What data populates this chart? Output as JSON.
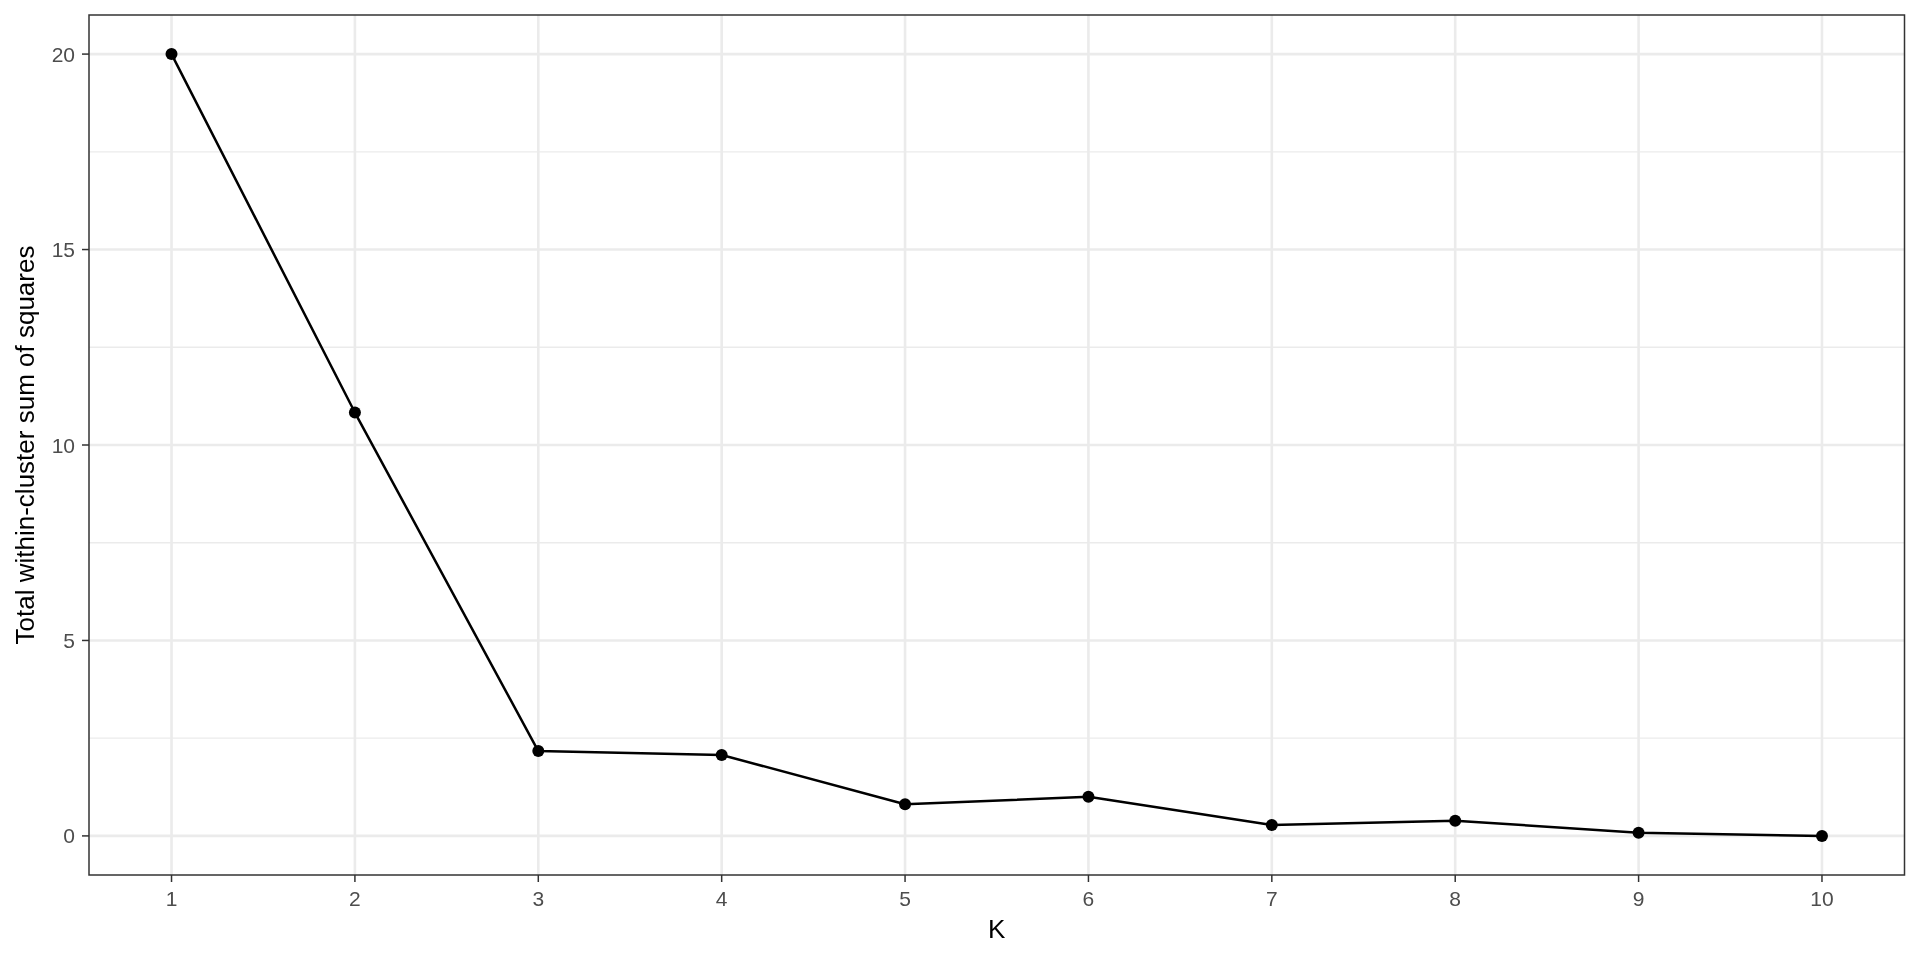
{
  "chart_data": {
    "type": "line",
    "xlabel": "K",
    "ylabel": "Total within-cluster sum of squares",
    "x": [
      1,
      2,
      3,
      4,
      5,
      6,
      7,
      8,
      9,
      10
    ],
    "values": [
      20,
      10.83,
      2.17,
      2.07,
      0.81,
      1.0,
      0.28,
      0.39,
      0.08,
      0
    ],
    "color": "#000000",
    "xlim": [
      0.55,
      10.45
    ],
    "ylim": [
      -1,
      21
    ],
    "xticks": [
      1,
      2,
      3,
      4,
      5,
      6,
      7,
      8,
      9,
      10
    ],
    "yticks": [
      0,
      5,
      10,
      15,
      20
    ],
    "grid": true,
    "marker": "circle",
    "line_style": "solid"
  }
}
